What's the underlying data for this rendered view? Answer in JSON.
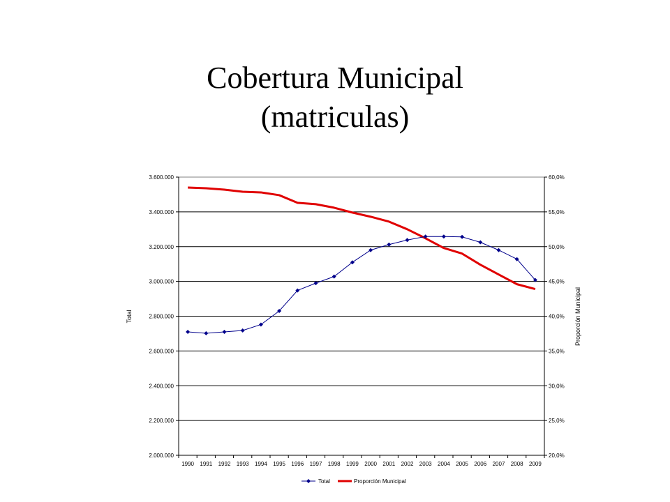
{
  "slide": {
    "title_line1": "Cobertura Municipal",
    "title_line2": "(matriculas)"
  },
  "chart_data": {
    "type": "line",
    "categories": [
      "1990",
      "1991",
      "1992",
      "1993",
      "1994",
      "1995",
      "1996",
      "1997",
      "1998",
      "1999",
      "2000",
      "2001",
      "2002",
      "2003",
      "2004",
      "2005",
      "2006",
      "2007",
      "2008",
      "2009"
    ],
    "series": [
      {
        "name": "Total",
        "axis": "left",
        "color": "#00008b",
        "marker": "diamond",
        "values": [
          2710000,
          2702000,
          2710000,
          2718000,
          2752000,
          2830000,
          2948000,
          2990000,
          3028000,
          3110000,
          3180000,
          3212000,
          3238000,
          3258000,
          3258000,
          3256000,
          3225000,
          3180000,
          3128000,
          3008000
        ]
      },
      {
        "name": "Proporción Municipal",
        "axis": "right",
        "color": "#e00000",
        "marker": "none",
        "values": [
          58.5,
          58.4,
          58.2,
          57.9,
          57.8,
          57.4,
          56.3,
          56.1,
          55.6,
          54.9,
          54.3,
          53.6,
          52.5,
          51.2,
          49.8,
          49.0,
          47.4,
          46.0,
          44.6,
          43.9
        ]
      }
    ],
    "ylabel": "Total",
    "y2label": "Proporción Municipal",
    "ylim": [
      2000000,
      3600000
    ],
    "y2lim": [
      20,
      60
    ],
    "yticks": [
      "2.000.000",
      "2.200.000",
      "2.400.000",
      "2.600.000",
      "2.800.000",
      "3.000.000",
      "3.200.000",
      "3.400.000",
      "3.600.000"
    ],
    "y2ticks": [
      "20,0%",
      "25,0%",
      "30,0%",
      "35,0%",
      "40,0%",
      "45,0%",
      "50,0%",
      "55,0%",
      "60,0%"
    ],
    "grid": "horizontal",
    "legend": "bottom"
  }
}
